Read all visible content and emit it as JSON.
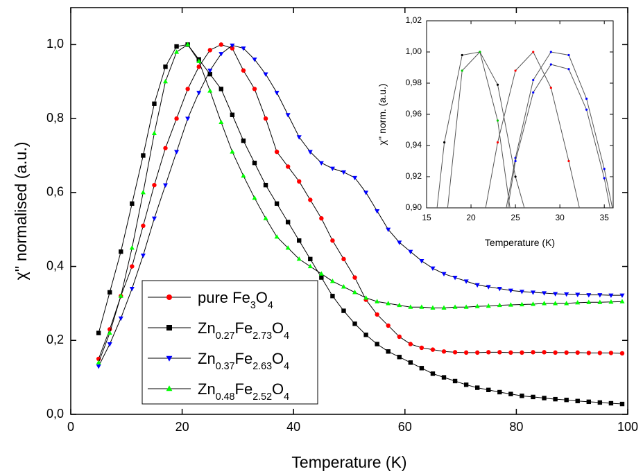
{
  "chart_data": [
    {
      "type": "line",
      "xlabel": "Temperature (K)",
      "ylabel": "χ'' normalised (a.u.)",
      "xlim": [
        0,
        100
      ],
      "ylim": [
        0,
        1.1
      ],
      "xticks": [
        0,
        20,
        40,
        60,
        80,
        100
      ],
      "yticks": [
        {
          "value": 0,
          "label": "0,0"
        },
        {
          "value": 0.2,
          "label": "0,2"
        },
        {
          "value": 0.4,
          "label": "0,4"
        },
        {
          "value": 0.6,
          "label": "0,6"
        },
        {
          "value": 0.8,
          "label": "0,8"
        },
        {
          "value": 1.0,
          "label": "1,0"
        }
      ],
      "line_color": "#000000",
      "legend": "lower left",
      "x": [
        5,
        7,
        9,
        11,
        13,
        15,
        17,
        19,
        21,
        23,
        25,
        27,
        29,
        31,
        33,
        35,
        37,
        39,
        41,
        43,
        45,
        47,
        49,
        51,
        53,
        55,
        57,
        59,
        61,
        63,
        65,
        67,
        69,
        71,
        73,
        75,
        77,
        79,
        81,
        83,
        85,
        87,
        89,
        91,
        93,
        95,
        97,
        99
      ],
      "series": [
        {
          "name": "pure Fe3O4",
          "color": "#ff0000",
          "marker": "circle",
          "values": [
            0.15,
            0.23,
            0.32,
            0.4,
            0.51,
            0.62,
            0.72,
            0.8,
            0.88,
            0.94,
            0.985,
            1.0,
            0.99,
            0.93,
            0.88,
            0.8,
            0.71,
            0.67,
            0.63,
            0.58,
            0.53,
            0.47,
            0.42,
            0.37,
            0.31,
            0.27,
            0.24,
            0.21,
            0.19,
            0.18,
            0.175,
            0.17,
            0.168,
            0.167,
            0.167,
            0.168,
            0.168,
            0.167,
            0.167,
            0.168,
            0.168,
            0.167,
            0.167,
            0.167,
            0.166,
            0.166,
            0.166,
            0.165
          ]
        },
        {
          "name": "Zn0.27Fe2.73O4",
          "color": "#000000",
          "marker": "square",
          "values": [
            0.22,
            0.33,
            0.44,
            0.57,
            0.7,
            0.84,
            0.94,
            0.995,
            1.0,
            0.96,
            0.92,
            0.88,
            0.81,
            0.74,
            0.68,
            0.62,
            0.57,
            0.52,
            0.47,
            0.42,
            0.37,
            0.32,
            0.28,
            0.245,
            0.215,
            0.19,
            0.17,
            0.155,
            0.14,
            0.125,
            0.11,
            0.1,
            0.09,
            0.08,
            0.072,
            0.066,
            0.06,
            0.055,
            0.05,
            0.047,
            0.044,
            0.041,
            0.039,
            0.036,
            0.034,
            0.032,
            0.03,
            0.028
          ]
        },
        {
          "name": "Zn0.37Fe2.63O4",
          "color": "#0000ff",
          "marker": "triangle-down",
          "values": [
            0.13,
            0.19,
            0.26,
            0.34,
            0.43,
            0.53,
            0.62,
            0.71,
            0.8,
            0.87,
            0.93,
            0.975,
            0.998,
            0.99,
            0.96,
            0.92,
            0.87,
            0.81,
            0.75,
            0.71,
            0.68,
            0.665,
            0.655,
            0.64,
            0.6,
            0.55,
            0.5,
            0.465,
            0.44,
            0.415,
            0.395,
            0.38,
            0.37,
            0.36,
            0.35,
            0.345,
            0.34,
            0.335,
            0.332,
            0.33,
            0.328,
            0.326,
            0.325,
            0.324,
            0.323,
            0.323,
            0.322,
            0.322
          ]
        },
        {
          "name": "Zn0.48Fe2.52O4",
          "color": "#00ff00",
          "marker": "triangle-up",
          "values": [
            0.14,
            0.22,
            0.32,
            0.45,
            0.6,
            0.76,
            0.9,
            0.98,
            1.0,
            0.955,
            0.875,
            0.79,
            0.71,
            0.645,
            0.585,
            0.53,
            0.48,
            0.45,
            0.42,
            0.4,
            0.38,
            0.36,
            0.345,
            0.33,
            0.315,
            0.305,
            0.3,
            0.295,
            0.29,
            0.29,
            0.288,
            0.288,
            0.29,
            0.29,
            0.292,
            0.293,
            0.295,
            0.296,
            0.297,
            0.298,
            0.3,
            0.3,
            0.3,
            0.302,
            0.303,
            0.303,
            0.304,
            0.305
          ]
        }
      ]
    },
    {
      "type": "line",
      "xlabel": "Temperature (K)",
      "ylabel": "χ'' norm. (a.u.)",
      "xlim": [
        15,
        36
      ],
      "ylim": [
        0.9,
        1.02
      ],
      "xticks": [
        15,
        20,
        25,
        30,
        35
      ],
      "yticks": [
        {
          "value": 0.9,
          "label": "0,90"
        },
        {
          "value": 0.92,
          "label": "0,92"
        },
        {
          "value": 0.94,
          "label": "0,94"
        },
        {
          "value": 0.96,
          "label": "0,96"
        },
        {
          "value": 0.98,
          "label": "0,98"
        },
        {
          "value": 1.0,
          "label": "1,00"
        },
        {
          "value": 1.02,
          "label": "1,02"
        }
      ],
      "line_color": "#555555",
      "series": [
        {
          "color": "#000000",
          "marker": "dot",
          "x": [
            15,
            17,
            19,
            21,
            23,
            25,
            27
          ],
          "values": [
            0.84,
            0.942,
            0.998,
            1.0,
            0.979,
            0.92,
            0.88
          ]
        },
        {
          "color": "#00cc00",
          "marker": "dot",
          "x": [
            17,
            19,
            21,
            23,
            25
          ],
          "values": [
            0.88,
            0.988,
            1.0,
            0.956,
            0.875
          ]
        },
        {
          "color": "#ff0000",
          "marker": "dot",
          "x": [
            21,
            23,
            25,
            27,
            29,
            31,
            33
          ],
          "values": [
            0.88,
            0.942,
            0.988,
            1.0,
            0.977,
            0.93,
            0.88
          ]
        },
        {
          "color": "#0000ff",
          "marker": "dot",
          "x": [
            23,
            25,
            27,
            29,
            31,
            33,
            35,
            37
          ],
          "values": [
            0.87,
            0.932,
            0.982,
            1.0,
            0.998,
            0.97,
            0.925,
            0.87
          ]
        },
        {
          "color": "#0000ff",
          "marker": "dot",
          "x": [
            23,
            25,
            27,
            29,
            31,
            33,
            35,
            37
          ],
          "values": [
            0.86,
            0.93,
            0.974,
            0.992,
            0.989,
            0.963,
            0.919,
            0.86
          ]
        }
      ]
    }
  ]
}
